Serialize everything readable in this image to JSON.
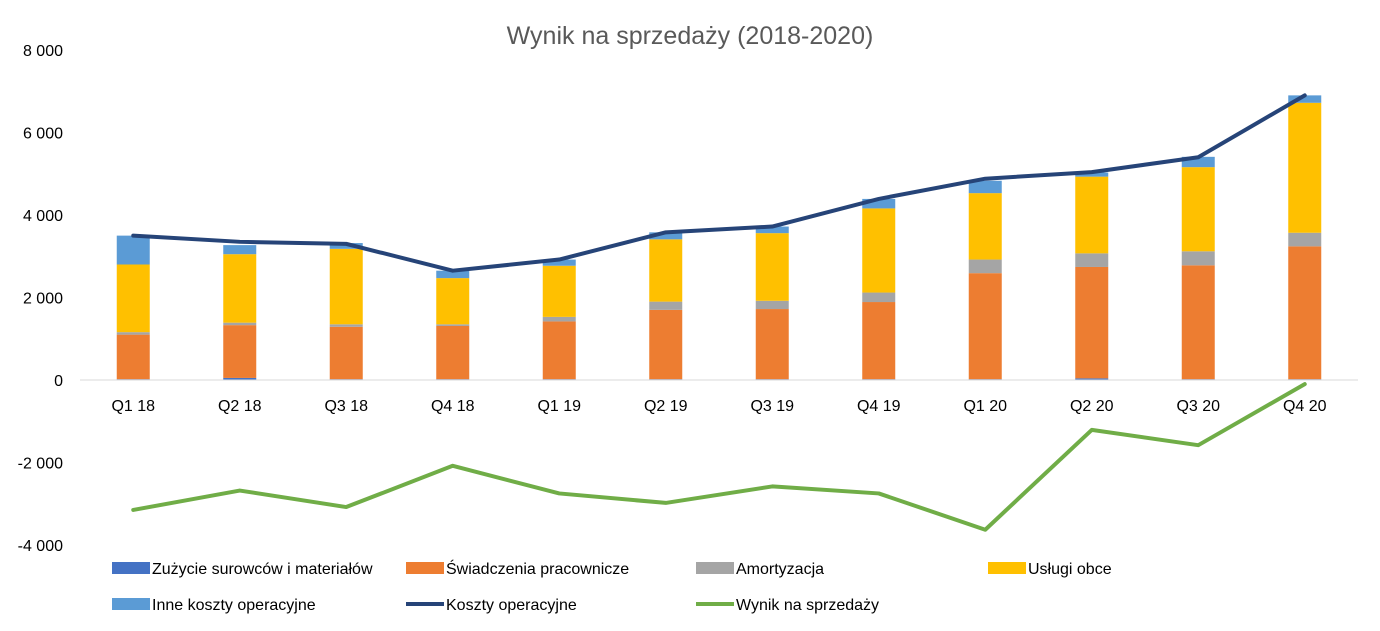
{
  "chart_data": {
    "type": "bar",
    "stacked": true,
    "title": "Wynik na sprzedaży (2018-2020)",
    "xlabel": "",
    "ylabel": "",
    "ylim": [
      -4000,
      8000
    ],
    "yticks": [
      8000,
      6000,
      4000,
      2000,
      0,
      -2000,
      -4000
    ],
    "ytick_labels": [
      "8 000",
      "6 000",
      "4 000",
      "2 000",
      "0",
      "-2 000",
      "-4 000"
    ],
    "grid": false,
    "legend_position": "bottom",
    "categories": [
      "Q1 18",
      "Q2 18",
      "Q3 18",
      "Q4 18",
      "Q1 19",
      "Q2 19",
      "Q3 19",
      "Q4 19",
      "Q1 20",
      "Q2 20",
      "Q3 20",
      "Q4 20"
    ],
    "series": [
      {
        "name": "Zużycie surowców i materiałów",
        "kind": "bar",
        "color": "#4472C4",
        "values": [
          20,
          50,
          20,
          20,
          20,
          20,
          20,
          20,
          20,
          40,
          20,
          20
        ]
      },
      {
        "name": "Świadczenia pracownicze",
        "kind": "bar",
        "color": "#ED7D31",
        "values": [
          1080,
          1280,
          1270,
          1290,
          1400,
          1680,
          1700,
          1870,
          2570,
          2700,
          2760,
          3220
        ]
      },
      {
        "name": "Amortyzacja",
        "kind": "bar",
        "color": "#A5A5A5",
        "values": [
          60,
          60,
          60,
          40,
          110,
          200,
          200,
          230,
          330,
          330,
          340,
          330
        ]
      },
      {
        "name": "Usługi obce",
        "kind": "bar",
        "color": "#FFC000",
        "values": [
          1640,
          1660,
          1830,
          1120,
          1240,
          1510,
          1640,
          2040,
          1610,
          1860,
          2040,
          3150
        ]
      },
      {
        "name": "Inne koszty operacyjne",
        "kind": "bar",
        "color": "#5B9BD5",
        "values": [
          700,
          220,
          140,
          180,
          150,
          170,
          160,
          230,
          300,
          100,
          250,
          180
        ]
      },
      {
        "name": "Koszty operacyjne",
        "kind": "line",
        "color": "#264478",
        "values": [
          3500,
          3350,
          3300,
          2650,
          2920,
          3580,
          3720,
          4390,
          4880,
          5040,
          5400,
          6900
        ]
      },
      {
        "name": "Wynik na sprzedaży",
        "kind": "line",
        "color": "#70AD47",
        "values": [
          -3150,
          -2680,
          -3080,
          -2080,
          -2750,
          -2980,
          -2580,
          -2750,
          -3630,
          -1210,
          -1580,
          -100
        ]
      }
    ]
  }
}
